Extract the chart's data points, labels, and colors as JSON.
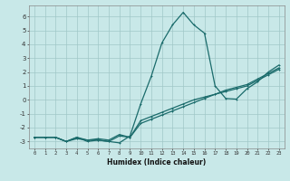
{
  "title": "",
  "xlabel": "Humidex (Indice chaleur)",
  "xlim": [
    -0.5,
    23.5
  ],
  "ylim": [
    -3.5,
    6.8
  ],
  "yticks": [
    -3,
    -2,
    -1,
    0,
    1,
    2,
    3,
    4,
    5,
    6
  ],
  "xticks": [
    0,
    1,
    2,
    3,
    4,
    5,
    6,
    7,
    8,
    9,
    10,
    11,
    12,
    13,
    14,
    15,
    16,
    17,
    18,
    19,
    20,
    21,
    22,
    23
  ],
  "background_color": "#c8e8e8",
  "grid_color": "#a0c8c8",
  "line_color": "#1a6b6b",
  "line1_x": [
    0,
    1,
    2,
    3,
    4,
    5,
    6,
    7,
    8,
    9,
    10,
    11,
    12,
    13,
    14,
    15,
    16,
    17,
    18,
    19,
    20,
    21,
    22,
    23
  ],
  "line1_y": [
    -2.7,
    -2.7,
    -2.7,
    -3.0,
    -2.7,
    -3.0,
    -2.9,
    -3.0,
    -3.1,
    -2.6,
    -0.3,
    1.7,
    4.1,
    5.4,
    6.3,
    5.4,
    4.8,
    1.0,
    0.1,
    0.05,
    0.8,
    1.3,
    2.0,
    2.5
  ],
  "line2_x": [
    0,
    1,
    2,
    3,
    4,
    5,
    6,
    7,
    8,
    9,
    10,
    11,
    12,
    13,
    14,
    15,
    16,
    17,
    18,
    19,
    20,
    21,
    22,
    23
  ],
  "line2_y": [
    -2.7,
    -2.7,
    -2.7,
    -3.0,
    -2.7,
    -2.9,
    -2.8,
    -2.9,
    -2.5,
    -2.7,
    -1.5,
    -1.2,
    -0.9,
    -0.6,
    -0.3,
    0.0,
    0.2,
    0.4,
    0.6,
    0.8,
    1.0,
    1.4,
    1.8,
    2.2
  ],
  "line3_x": [
    0,
    1,
    2,
    3,
    4,
    5,
    6,
    7,
    8,
    9,
    10,
    11,
    12,
    13,
    14,
    15,
    16,
    17,
    18,
    19,
    20,
    21,
    22,
    23
  ],
  "line3_y": [
    -2.7,
    -2.7,
    -2.7,
    -3.0,
    -2.8,
    -2.9,
    -2.9,
    -3.0,
    -2.6,
    -2.7,
    -1.7,
    -1.4,
    -1.1,
    -0.8,
    -0.5,
    -0.2,
    0.1,
    0.4,
    0.7,
    0.9,
    1.1,
    1.5,
    1.9,
    2.3
  ]
}
